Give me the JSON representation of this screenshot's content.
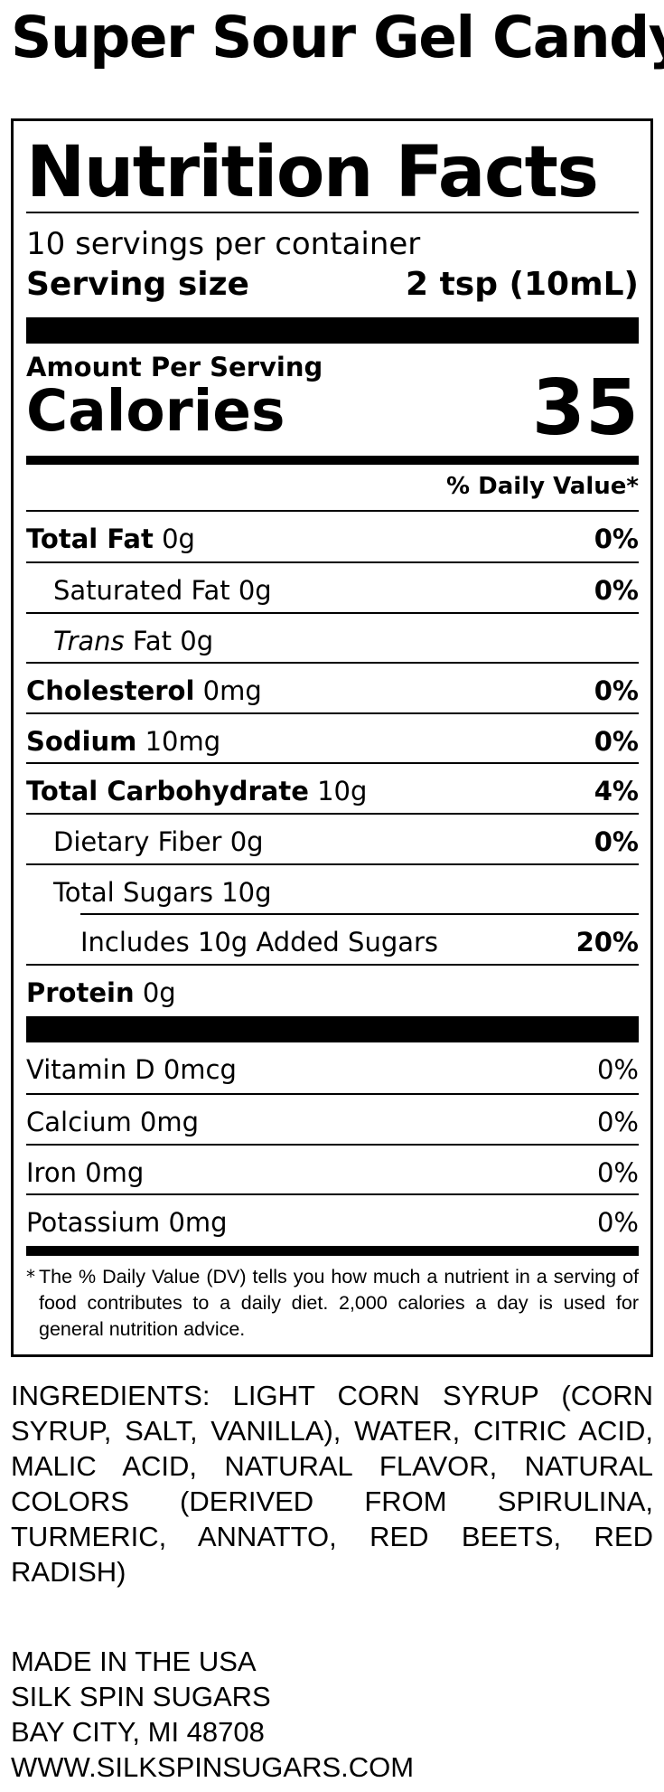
{
  "product_name": "Super Sour Gel Candy",
  "nutrition": {
    "title": "Nutrition Facts",
    "servings_per_container": "10 servings per container",
    "serving_size_label": "Serving size",
    "serving_size_value": "2 tsp (10mL)",
    "amount_per_serving": "Amount Per Serving",
    "calories_label": "Calories",
    "calories_value": "35",
    "daily_value_header": "% Daily Value*",
    "nutrients": [
      {
        "bold": "Total Fat",
        "amount": " 0g",
        "dv": "0%"
      },
      {
        "plain": "Saturated Fat 0g",
        "dv": "0%"
      },
      {
        "italic": "Trans",
        "amount": " Fat 0g",
        "dv": ""
      },
      {
        "bold": "Cholesterol",
        "amount": " 0mg",
        "dv": "0%"
      },
      {
        "bold": "Sodium",
        "amount": " 10mg",
        "dv": "0%"
      },
      {
        "bold": "Total Carbohydrate",
        "amount": " 10g",
        "dv": "4%"
      },
      {
        "plain": "Dietary Fiber 0g",
        "dv": "0%"
      },
      {
        "plain": "Total Sugars 10g",
        "dv": ""
      },
      {
        "plain": "Includes 10g Added Sugars",
        "dv": "20%"
      },
      {
        "bold": "Protein",
        "amount": " 0g",
        "dv": ""
      }
    ],
    "vitamins": [
      {
        "label": "Vitamin D 0mcg",
        "dv": "0%"
      },
      {
        "label": "Calcium 0mg",
        "dv": "0%"
      },
      {
        "label": "Iron 0mg",
        "dv": "0%"
      },
      {
        "label": "Potassium 0mg",
        "dv": "0%"
      }
    ],
    "footnote_marker": "*",
    "footnote": "The % Daily Value (DV) tells you how much a nutrient in a serving of food contributes to a daily diet. 2,000 calories a day is used for general nutrition advice."
  },
  "ingredients": "INGREDIENTS: LIGHT CORN SYRUP (CORN SYRUP, SALT, VANILLA), WATER, CITRIC ACID, MALIC ACID, NATURAL FLAVOR, NATURAL COLORS (DERIVED FROM SPIRULINA, TURMERIC, ANNATTO, RED BEETS, RED RADISH)",
  "address": {
    "made_in": "MADE IN THE USA",
    "company": "SILK SPIN SUGARS",
    "city": "BAY CITY, MI 48708",
    "website": "WWW.SILKSPINSUGARS.COM"
  }
}
